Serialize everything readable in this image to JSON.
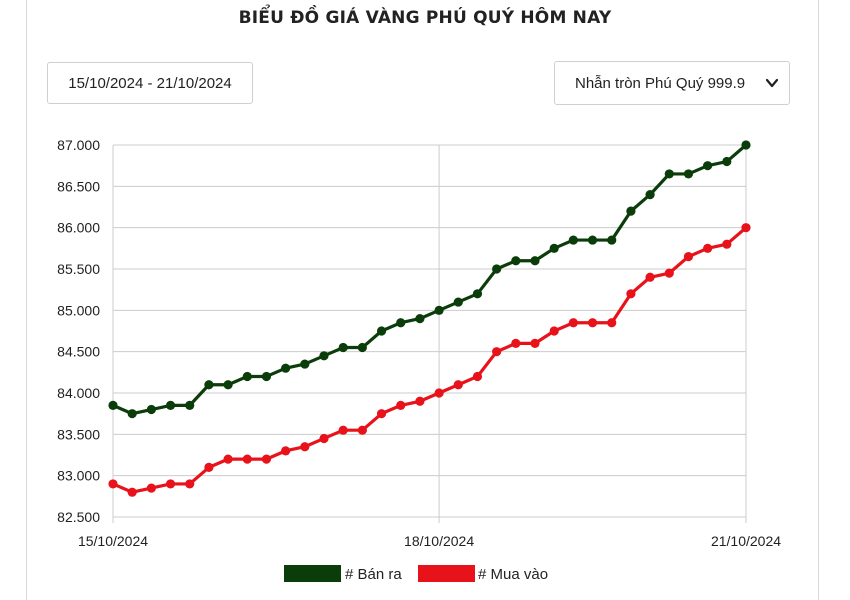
{
  "header": {
    "title": "BIỂU ĐỒ GIÁ VÀNG PHÚ QUÝ HÔM NAY"
  },
  "controls": {
    "date_range": "15/10/2024 - 21/10/2024",
    "product_select": "Nhẫn tròn Phú Quý 999.9"
  },
  "colors": {
    "sell": "#0b3d0b",
    "buy": "#e8121b",
    "grid": "#cccccc"
  },
  "chart_data": {
    "type": "line",
    "title": "BIỂU ĐỒ GIÁ VÀNG PHÚ QUÝ HÔM NAY",
    "xlabel": "",
    "ylabel": "",
    "ylim": [
      82500,
      87000
    ],
    "y_ticks": [
      87000,
      86500,
      86000,
      85500,
      85000,
      84500,
      84000,
      83500,
      83000,
      82500
    ],
    "y_tick_labels": [
      "87.000",
      "86.500",
      "86.000",
      "85.500",
      "85.000",
      "84.500",
      "84.000",
      "83.500",
      "83.000",
      "82.500"
    ],
    "x_tick_labels": [
      "15/10/2024",
      "18/10/2024",
      "21/10/2024"
    ],
    "x_tick_index": [
      0,
      17,
      33
    ],
    "legend": {
      "position": "bottom",
      "sell_label": "# Bán ra",
      "buy_label": "# Mua vào"
    },
    "series": [
      {
        "name": "# Bán ra",
        "key": "sell",
        "values": [
          83850,
          83750,
          83800,
          83850,
          83850,
          84100,
          84100,
          84200,
          84200,
          84300,
          84350,
          84450,
          84550,
          84550,
          84750,
          84850,
          84900,
          85000,
          85100,
          85200,
          85500,
          85600,
          85600,
          85750,
          85850,
          85850,
          85850,
          86200,
          86400,
          86650,
          86650,
          86750,
          86800,
          87000
        ]
      },
      {
        "name": "# Mua vào",
        "key": "buy",
        "values": [
          82900,
          82800,
          82850,
          82900,
          82900,
          83100,
          83200,
          83200,
          83200,
          83300,
          83350,
          83450,
          83550,
          83550,
          83750,
          83850,
          83900,
          84000,
          84100,
          84200,
          84500,
          84600,
          84600,
          84750,
          84850,
          84850,
          84850,
          85200,
          85400,
          85450,
          85650,
          85750,
          85800,
          86000
        ]
      }
    ]
  }
}
